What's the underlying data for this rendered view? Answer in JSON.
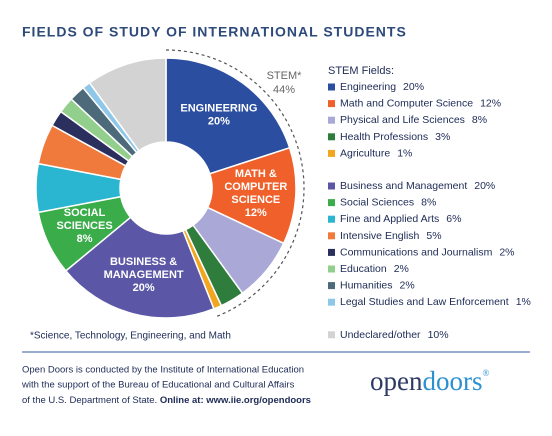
{
  "chart_data": {
    "type": "pie",
    "title": "FIELDS OF STUDY OF INTERNATIONAL STUDENTS",
    "legend_title": "STEM Fields:",
    "categories": [
      "Engineering",
      "Math and Computer Science",
      "Physical and Life Sciences",
      "Health Professions",
      "Agriculture",
      "Business and Management",
      "Social Sciences",
      "Fine and Applied Arts",
      "Intensive English",
      "Communications and Journalism",
      "Education",
      "Humanities",
      "Legal Studies and Law Enforcement",
      "Undeclared/other"
    ],
    "values": [
      20,
      12,
      8,
      3,
      1,
      20,
      8,
      6,
      5,
      2,
      2,
      2,
      1,
      10
    ],
    "value_labels": [
      "20%",
      "12%",
      "8%",
      "3%",
      "1%",
      "20%",
      "8%",
      "6%",
      "5%",
      "2%",
      "2%",
      "2%",
      "1%",
      "10%"
    ],
    "colors": [
      "#2b4ea0",
      "#f0602a",
      "#aaa8d6",
      "#2f7d3c",
      "#f2a51e",
      "#5b57a6",
      "#3aac4a",
      "#2ab5d0",
      "#f07a3c",
      "#2a2f5e",
      "#92cf8c",
      "#4d6a7a",
      "#8ec7e8",
      "#d3d3d3"
    ],
    "slice_labels": [
      [
        "ENGINEERING"
      ],
      [
        "MATH &",
        "COMPUTER",
        "SCIENCE"
      ],
      null,
      null,
      null,
      [
        "BUSINESS &",
        "MANAGEMENT"
      ],
      [
        "SOCIAL",
        "SCIENCES"
      ],
      null,
      null,
      null,
      null,
      null,
      null,
      null
    ],
    "group_annotation": {
      "label": "STEM*",
      "value": 44,
      "value_label": "44%"
    },
    "footnote": "*Science, Technology, Engineering, and Math",
    "footer": {
      "lines": [
        "Open Doors is conducted by the Institute of International Education",
        "with the support of the Bureau of Educational and Cultural Affairs"
      ],
      "line3": "of the U.S. Department of State.",
      "link": "Online at: www.iie.org/opendoors"
    },
    "logo": {
      "part1": "open",
      "part2": "doors",
      "mark": "®"
    }
  }
}
